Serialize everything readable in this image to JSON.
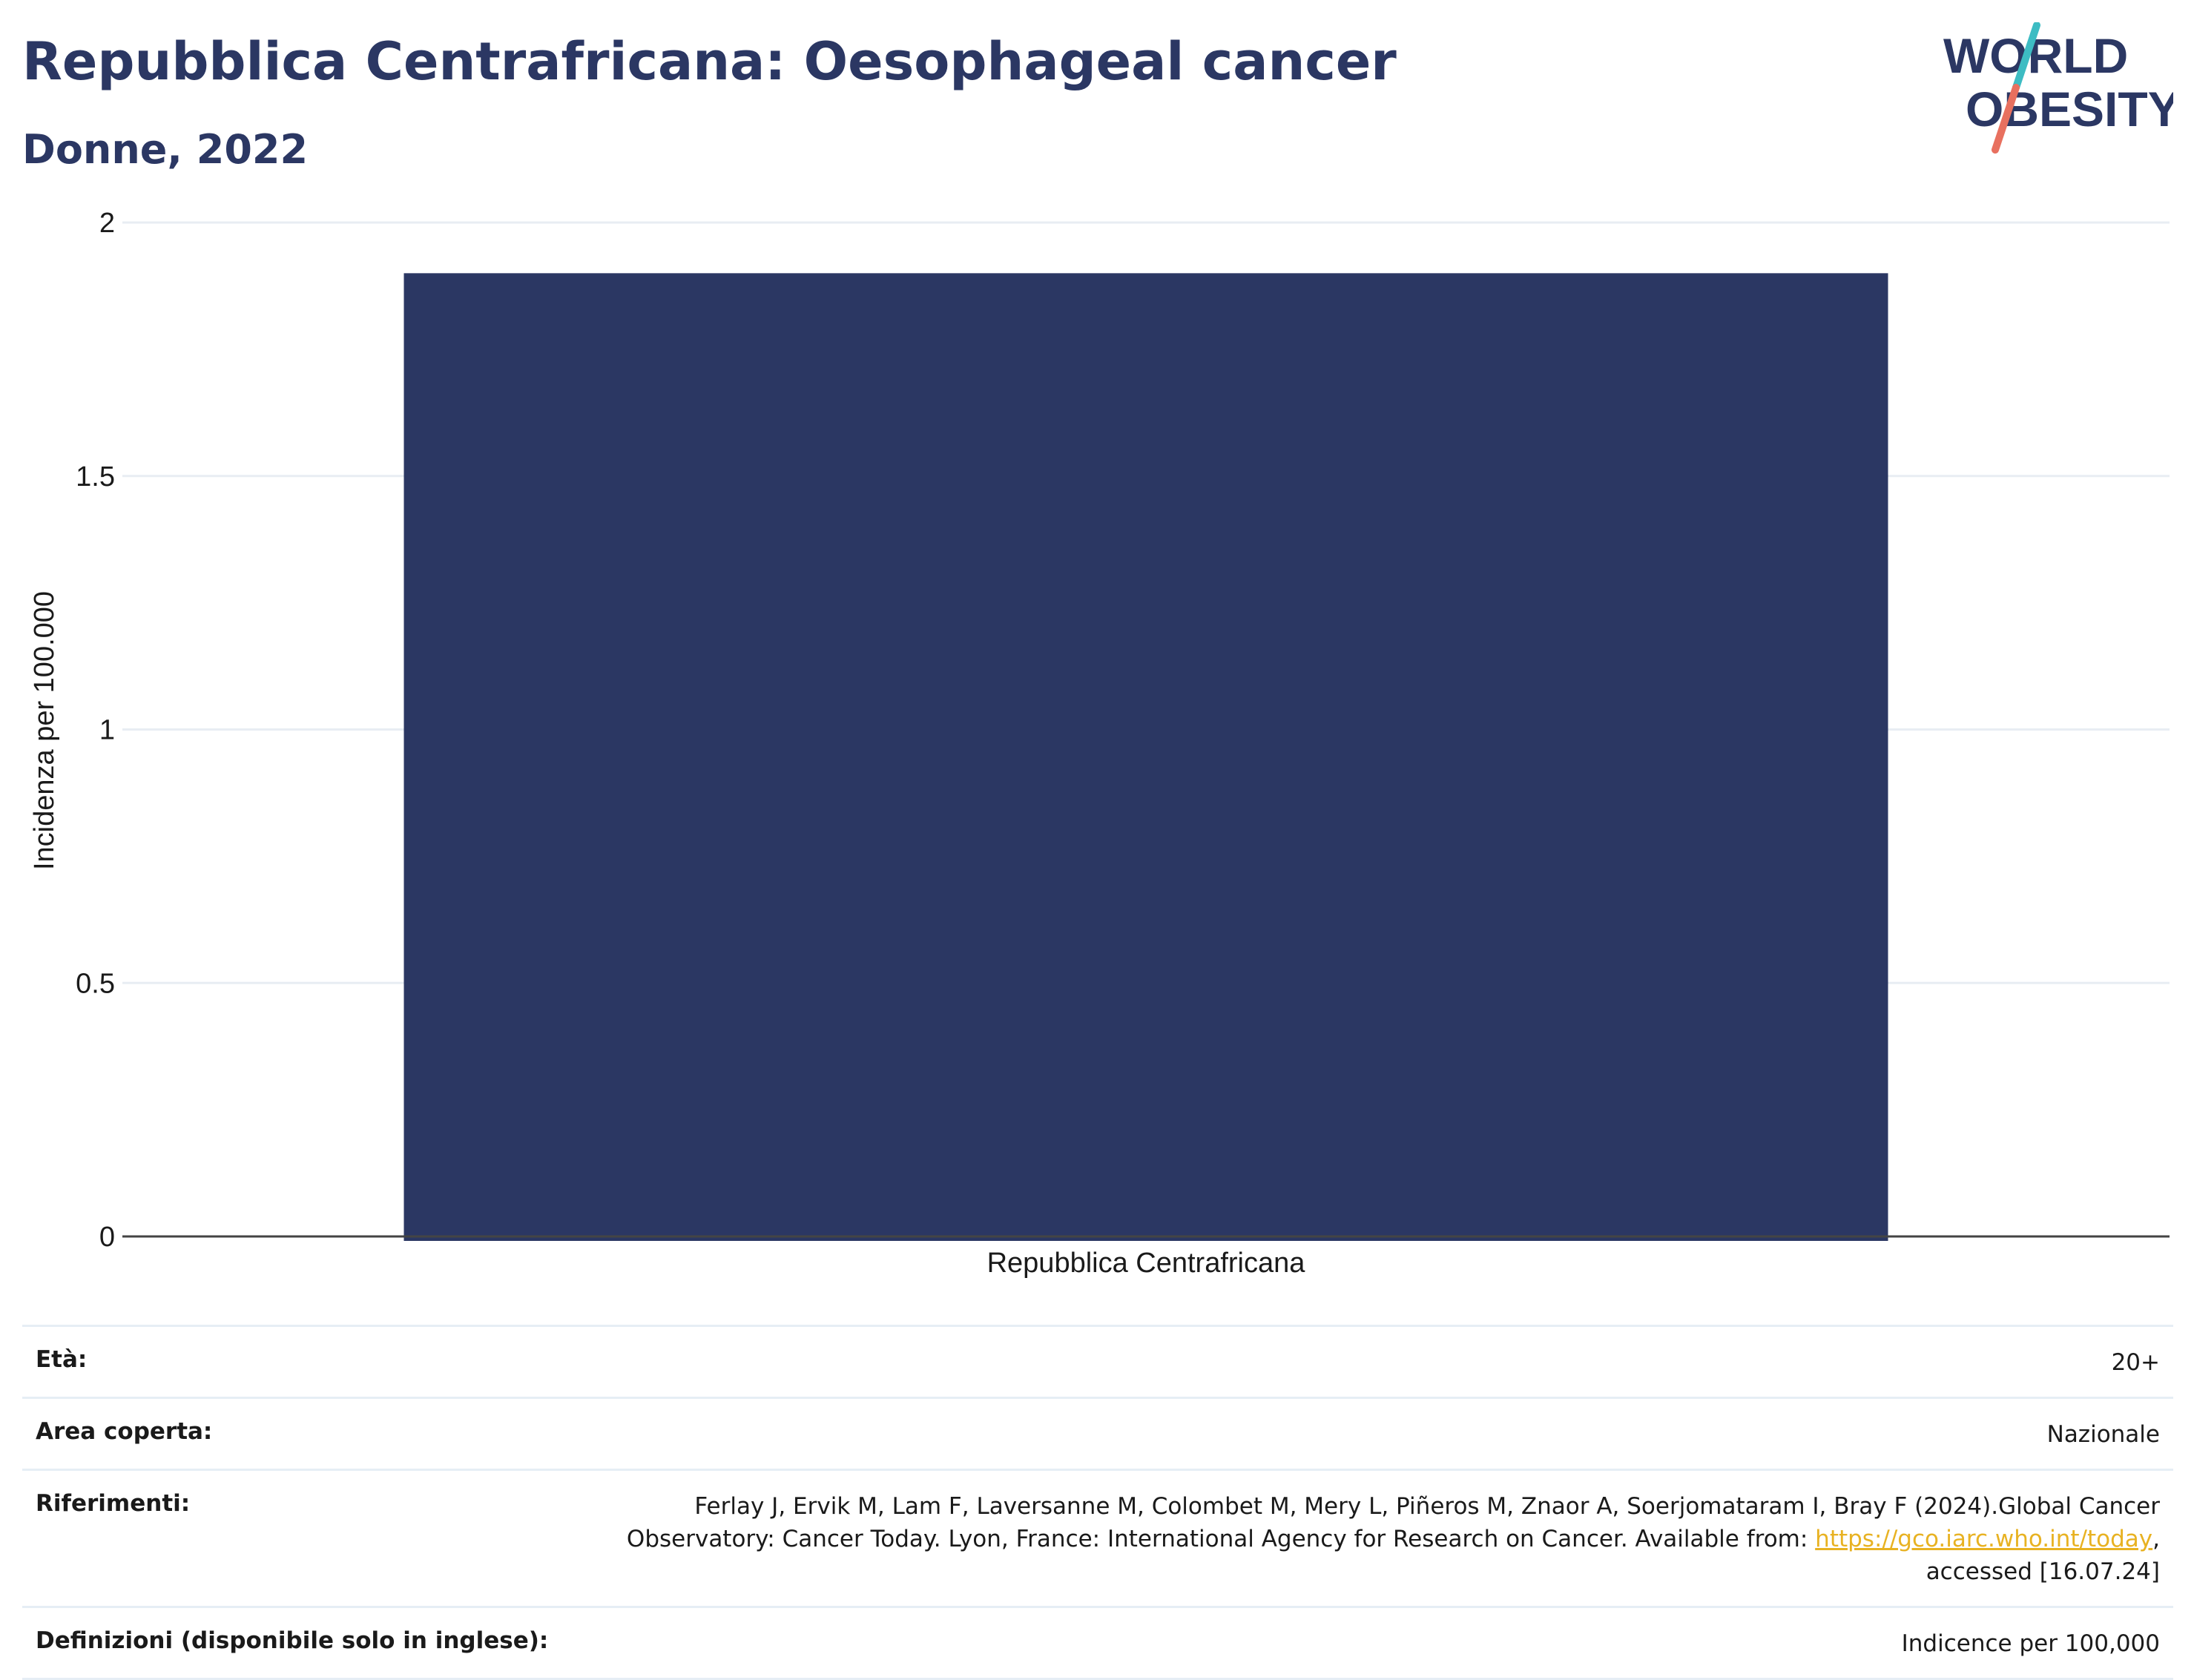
{
  "header": {
    "title": "Repubblica Centrafricana: Oesophageal cancer",
    "subtitle": "Donne, 2022"
  },
  "logo": {
    "line1": "WORLD",
    "line2": "OBESITY",
    "text_color": "#2b3763",
    "slash_top_color": "#3dbcc3",
    "slash_bottom_color": "#e8705f"
  },
  "chart_data": {
    "type": "bar",
    "categories": [
      "Repubblica Centrafricana"
    ],
    "values": [
      1.9
    ],
    "title": "Repubblica Centrafricana: Oesophageal cancer",
    "subtitle": "Donne, 2022",
    "xlabel": "",
    "ylabel": "Incidenza per 100.000",
    "ylim": [
      0,
      2
    ],
    "yticks": [
      0,
      0.5,
      1,
      1.5,
      2
    ],
    "ytick_labels": [
      "0",
      "0.5",
      "1",
      "1.5",
      "2"
    ],
    "grid": true,
    "bar_color": "#2b3763"
  },
  "meta": {
    "age_label": "Età:",
    "age_value": "20+",
    "area_label": "Area coperta:",
    "area_value": "Nazionale",
    "refs_label": "Riferimenti:",
    "refs_text_1": "Ferlay J, Ervik M, Lam F, Laversanne M, Colombet M, Mery L, Piñeros M, Znaor A, Soerjomataram I, Bray F (2024).Global Cancer Observatory: Cancer Today. Lyon, France: International Agency for Research on Cancer. Available from: ",
    "refs_link": "https://gco.iarc.who.int/today",
    "refs_text_2": ", accessed [16.07.24]",
    "defs_label": "Definizioni (disponibile solo in inglese):",
    "defs_value": "Indicence per 100,000"
  }
}
